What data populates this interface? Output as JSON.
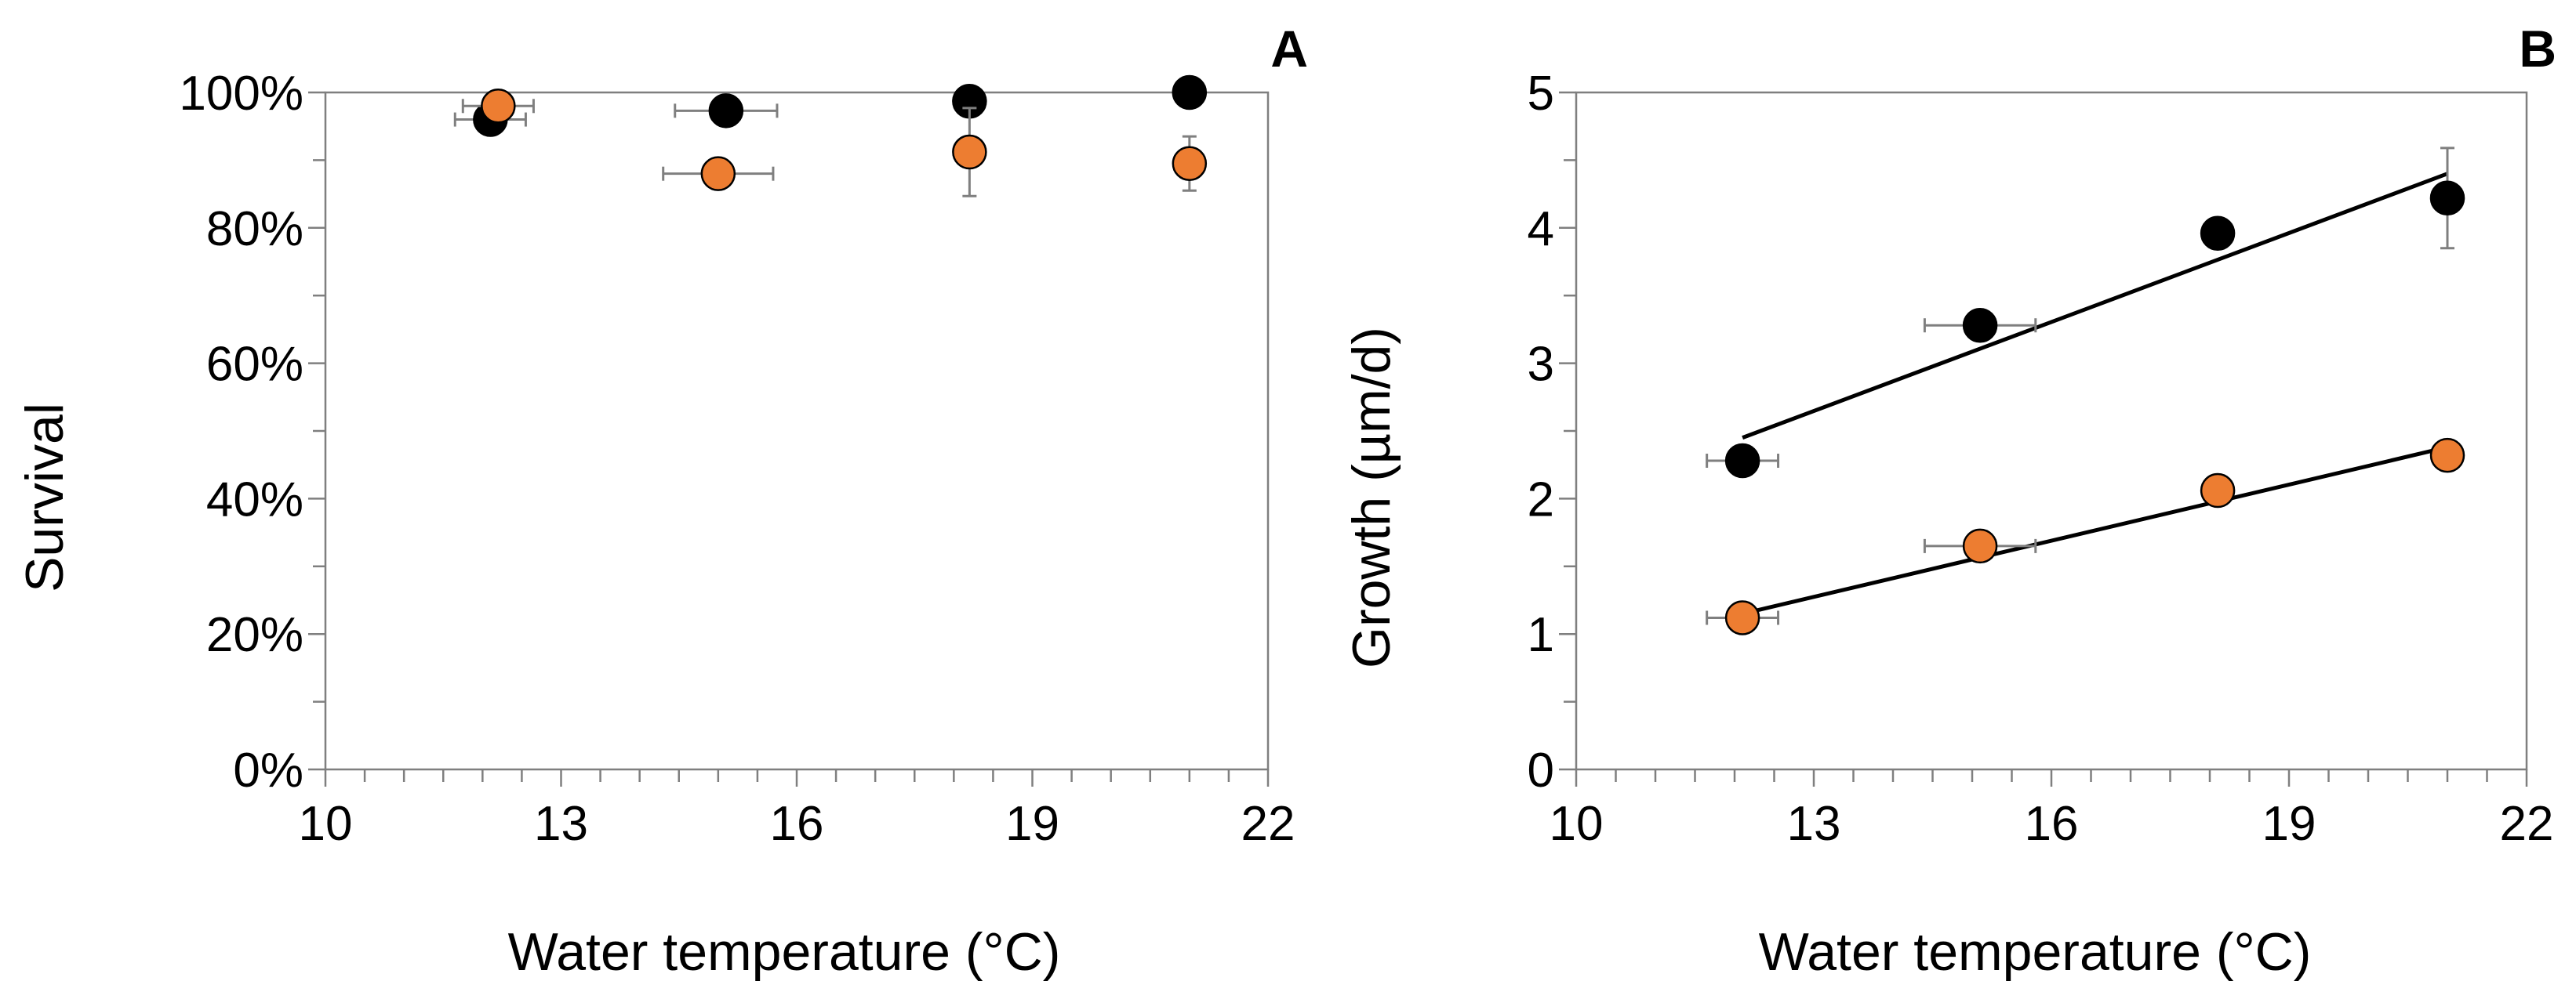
{
  "chart_data": [
    {
      "panel_label": "A",
      "type": "scatter",
      "xlabel": "Water temperature (°C)",
      "ylabel": "Survival",
      "xlim": [
        10,
        22
      ],
      "ylim": [
        0,
        100
      ],
      "xticks": [
        10,
        13,
        16,
        19,
        22
      ],
      "xtick_labels": [
        "10",
        "13",
        "16",
        "19",
        "22"
      ],
      "yticks": [
        0,
        20,
        40,
        60,
        80,
        100
      ],
      "ytick_labels": [
        "0%",
        "20%",
        "40%",
        "60%",
        "80%",
        "100%"
      ],
      "minor_x": [
        10.5,
        11,
        11.5,
        12,
        12.5,
        13.5,
        14,
        14.5,
        15,
        15.5,
        16.5,
        17,
        17.5,
        18,
        18.5,
        19.5,
        20,
        20.5,
        21,
        21.5
      ],
      "minor_y": [
        10,
        30,
        50,
        70,
        90
      ],
      "grid": false,
      "series": [
        {
          "name": "black",
          "color": "#000000",
          "points": [
            {
              "x": 12.1,
              "y": 96.0,
              "xerr": 0.45,
              "yerr": 2.0
            },
            {
              "x": 15.1,
              "y": 97.3,
              "xerr": 0.65,
              "yerr": 0
            },
            {
              "x": 18.2,
              "y": 98.7,
              "xerr": 0,
              "yerr": 0
            },
            {
              "x": 21.0,
              "y": 100.0,
              "xerr": 0,
              "yerr": 0
            }
          ]
        },
        {
          "name": "orange",
          "color": "#ed7d31",
          "points": [
            {
              "x": 12.2,
              "y": 98.0,
              "xerr": 0.45,
              "yerr": 1.0
            },
            {
              "x": 15.0,
              "y": 88.0,
              "xerr": 0.7,
              "yerr": 0
            },
            {
              "x": 18.2,
              "y": 91.2,
              "xerr": 0,
              "yerr": 6.5
            },
            {
              "x": 21.0,
              "y": 89.5,
              "xerr": 0,
              "yerr": 4.0
            }
          ]
        }
      ]
    },
    {
      "panel_label": "B",
      "type": "scatter",
      "xlabel": "Water temperature (°C)",
      "ylabel": "Growth (µm/d)",
      "xlim": [
        10,
        22
      ],
      "ylim": [
        0,
        5
      ],
      "xticks": [
        10,
        13,
        16,
        19,
        22
      ],
      "xtick_labels": [
        "10",
        "13",
        "16",
        "19",
        "22"
      ],
      "yticks": [
        0,
        1,
        2,
        3,
        4,
        5
      ],
      "ytick_labels": [
        "0",
        "1",
        "2",
        "3",
        "4",
        "5"
      ],
      "minor_x": [
        10.5,
        11,
        11.5,
        12,
        12.5,
        13.5,
        14,
        14.5,
        15,
        15.5,
        16.5,
        17,
        17.5,
        18,
        18.5,
        19.5,
        20,
        20.5,
        21,
        21.5
      ],
      "minor_y": [
        0.5,
        1.5,
        2.5,
        3.5,
        4.5
      ],
      "grid": false,
      "series": [
        {
          "name": "black",
          "color": "#000000",
          "points": [
            {
              "x": 12.1,
              "y": 2.28,
              "xerr": 0.45,
              "yerr": 0
            },
            {
              "x": 15.1,
              "y": 3.28,
              "xerr": 0.7,
              "yerr": 0
            },
            {
              "x": 18.1,
              "y": 3.96,
              "xerr": 0,
              "yerr": 0
            },
            {
              "x": 21.0,
              "y": 4.22,
              "xerr": 0,
              "yerr": 0.37
            }
          ],
          "trendline": {
            "x": [
              12.1,
              21.0
            ],
            "y": [
              2.45,
              4.4
            ]
          }
        },
        {
          "name": "orange",
          "color": "#ed7d31",
          "points": [
            {
              "x": 12.1,
              "y": 1.12,
              "xerr": 0.45,
              "yerr": 0
            },
            {
              "x": 15.1,
              "y": 1.65,
              "xerr": 0.7,
              "yerr": 0
            },
            {
              "x": 18.1,
              "y": 2.06,
              "xerr": 0,
              "yerr": 0
            },
            {
              "x": 21.0,
              "y": 2.32,
              "xerr": 0,
              "yerr": 0
            }
          ],
          "trendline": {
            "x": [
              12.1,
              21.0
            ],
            "y": [
              1.15,
              2.38
            ]
          }
        }
      ]
    }
  ]
}
